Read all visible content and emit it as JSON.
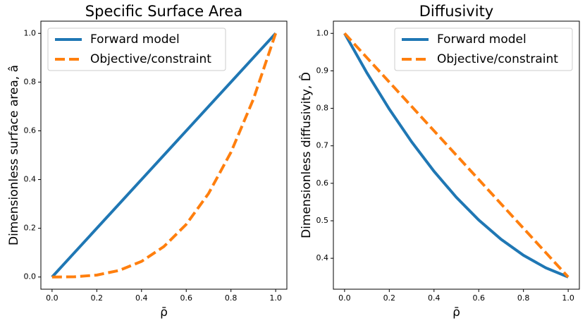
{
  "chart_data": [
    {
      "type": "line",
      "title": "Specific Surface Area",
      "xlabel": "ρ̄",
      "ylabel": "Dimensionless surface area, â",
      "x": [
        0,
        0.1,
        0.2,
        0.3,
        0.4,
        0.5,
        0.6,
        0.7,
        0.8,
        0.9,
        1.0
      ],
      "series": [
        {
          "name": "Forward model",
          "color": "#1f77b4",
          "dash": false,
          "values": [
            0,
            0.1,
            0.2,
            0.3,
            0.4,
            0.5,
            0.6,
            0.7,
            0.8,
            0.9,
            1.0
          ]
        },
        {
          "name": "Objective/constraint",
          "color": "#ff7f0e",
          "dash": true,
          "values": [
            0,
            0.001,
            0.008,
            0.027,
            0.064,
            0.125,
            0.216,
            0.343,
            0.512,
            0.729,
            1.0
          ]
        }
      ],
      "xlim": [
        -0.05,
        1.05
      ],
      "ylim": [
        -0.05,
        1.05
      ],
      "xticks": [
        {
          "value": 0,
          "label": "0.0"
        },
        0.2,
        0.4,
        0.6,
        0.8,
        {
          "value": 1,
          "label": "1.0"
        }
      ],
      "yticks": [
        {
          "value": 0,
          "label": "0.0"
        },
        0.2,
        0.4,
        0.6,
        0.8,
        {
          "value": 1,
          "label": "1.0"
        }
      ],
      "legend": "upper left"
    },
    {
      "type": "line",
      "title": "Diffusivity",
      "xlabel": "ρ̄",
      "ylabel": "Dimensionless diffusivity, D̂",
      "x": [
        0,
        0.1,
        0.2,
        0.3,
        0.4,
        0.5,
        0.6,
        0.7,
        0.8,
        0.9,
        1.0
      ],
      "series": [
        {
          "name": "Forward model",
          "color": "#1f77b4",
          "dash": false,
          "values": [
            1.0,
            0.8945,
            0.798,
            0.7105,
            0.632,
            0.5625,
            0.502,
            0.4505,
            0.408,
            0.3745,
            0.35
          ]
        },
        {
          "name": "Objective/constraint",
          "color": "#ff7f0e",
          "dash": true,
          "values": [
            1.0,
            0.935,
            0.87,
            0.805,
            0.74,
            0.675,
            0.61,
            0.545,
            0.48,
            0.415,
            0.35
          ]
        }
      ],
      "xlim": [
        -0.05,
        1.05
      ],
      "ylim": [
        0.3175,
        1.0325
      ],
      "xticks": [
        {
          "value": 0,
          "label": "0.0"
        },
        0.2,
        0.4,
        0.6,
        0.8,
        {
          "value": 1,
          "label": "1.0"
        }
      ],
      "yticks": [
        0.4,
        0.5,
        0.6,
        0.7,
        0.8,
        0.9,
        {
          "value": 1,
          "label": "1.0"
        }
      ],
      "legend": "upper right"
    }
  ]
}
